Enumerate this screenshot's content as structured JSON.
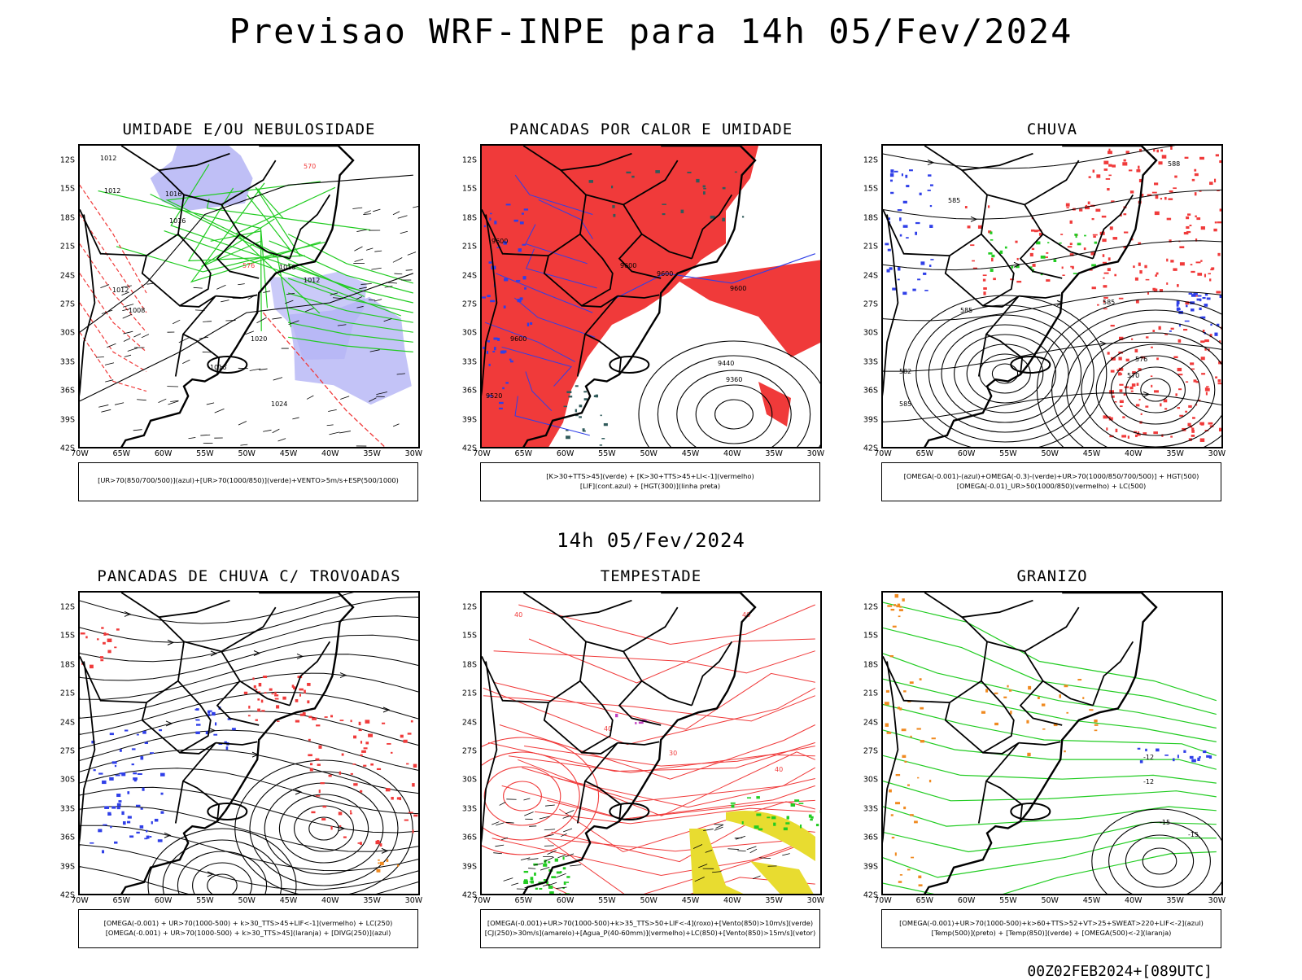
{
  "title": "Previsao WRF-INPE  para 14h 05/Fev/2024",
  "mid_title": "14h 05/Fev/2024",
  "footer": "00Z02FEB2024+[089UTC]",
  "axes": {
    "lat_ticks": [
      "12S",
      "15S",
      "18S",
      "21S",
      "24S",
      "27S",
      "30S",
      "33S",
      "36S",
      "39S",
      "42S"
    ],
    "lon_ticks": [
      "70W",
      "65W",
      "60W",
      "55W",
      "50W",
      "45W",
      "40W",
      "35W",
      "30W"
    ]
  },
  "panels": [
    {
      "id": "umidade",
      "title": "UMIDADE E/OU NEBULOSIDADE",
      "legend": [
        "[UR>70(850/700/500)](azul)+[UR>70(1000/850)](verde)+VENTO>5m/s+ESP(500/1000)"
      ],
      "contour_labels": [
        "1012",
        "1012",
        "1016",
        "1016",
        "1016",
        "1012",
        "1020",
        "1008",
        "1024",
        "1016",
        "1012",
        "570",
        "576"
      ]
    },
    {
      "id": "pancadas_calor",
      "title": "PANCADAS POR CALOR E UMIDADE",
      "legend": [
        "[K>30+TTS>45](verde) + [K>30+TTS>45+LI<-1](vermelho)",
        "[LIF](cont.azul) + [HGT(300)](linha preta)"
      ],
      "contour_labels": [
        "9600",
        "9600",
        "9600",
        "9600",
        "9440",
        "9360",
        "9600",
        "9520"
      ]
    },
    {
      "id": "chuva",
      "title": "CHUVA",
      "legend": [
        "[OMEGA(-0.001)-(azul)+OMEGA(-0.3)-(verde)+UR>70(1000/850/700/500)] + HGT(500)",
        "[OMEGA(-0.01)_UR>50(1000/850)(vermelho) + LC(500)"
      ],
      "contour_labels": [
        "585",
        "585",
        "582",
        "585",
        "576",
        "570",
        "585",
        "588"
      ]
    },
    {
      "id": "pancadas_trovoadas",
      "title": "PANCADAS DE CHUVA C/ TROVOADAS",
      "legend": [
        "[OMEGA(-0.001) + UR>70(1000-500) + k>30_TTS>45+LIF<-1](vermelho) + LC(250)",
        "[OMEGA(-0.001) + UR>70(1000-500) + k>30_TTS>45](laranja) + [DIVG(250)](azul)"
      ],
      "contour_labels": []
    },
    {
      "id": "tempestade",
      "title": "TEMPESTADE",
      "legend": [
        "[OMEGA(-0.001)+UR>70(1000-500)+k>35_TTS>50+LIF<-4](roxo)+[Vento(850)>10m/s](verde)",
        "[CJ(250)>30m/s](amarelo)+[Agua_P(40-60mm)](vermelho)+LC(850)+[Vento(850)>15m/s](vetor)"
      ],
      "contour_labels": [
        "40",
        "40",
        "40",
        "30",
        "40"
      ]
    },
    {
      "id": "granizo",
      "title": "GRANIZO",
      "legend": [
        "[OMEGA(-0.001)+UR>70(1000-500)+k>60+TTS>52+VT>25+SWEAT>220+LIF<-2](azul)",
        "[Temp(500)](preto) + [Temp(850)](verde) + [OMEGA(500)<-2](laranja)"
      ],
      "contour_labels": [
        "-15",
        "-15",
        "-12",
        "-12"
      ]
    }
  ],
  "colors": {
    "blue": "#2f3fe8",
    "red": "#f03a3a",
    "green": "#22cc22",
    "lavender": "#b4b4f5",
    "dark_teal": "#2f5a5a",
    "yellow": "#e8dc30",
    "orange": "#f08a20",
    "purple": "#c040c0"
  }
}
